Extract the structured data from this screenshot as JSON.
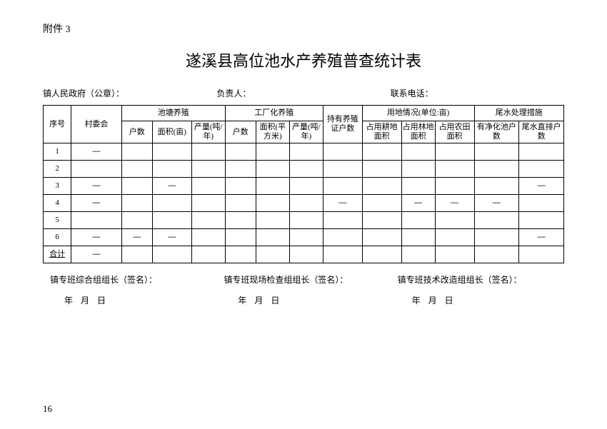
{
  "attachment_label": "附件 3",
  "title": "遂溪县高位池水产养殖普查统计表",
  "meta": {
    "gov": "镇人民政府（公章）：",
    "leader": "负责人：",
    "phone": "联系电话："
  },
  "header": {
    "seq": "序号",
    "village": "村委会",
    "pond_group": "池塘养殖",
    "pond_hu": "户数",
    "pond_area": "面积(亩)",
    "pond_yield": "产量(吨/年)",
    "factory_group": "工厂化养殖",
    "factory_hu": "户数",
    "factory_area": "面积(平方米)",
    "factory_yield": "产量(吨/年)",
    "cert": "持有养殖证户数",
    "land_group": "用地情况(单位:亩)",
    "land_arable": "占用耕地面积",
    "land_forest": "占用林地面积",
    "land_farm": "占用农田面积",
    "tail_group": "尾水处理措施",
    "tail_purify": "有净化池户数",
    "tail_direct": "尾水直排户数"
  },
  "rows": [
    {
      "n": "1",
      "v": "—",
      "a": "",
      "b": "",
      "c": "",
      "d": "",
      "e": "",
      "f": "",
      "g": "",
      "h": "",
      "i": "",
      "j": "",
      "k": "",
      "l": ""
    },
    {
      "n": "2",
      "v": "",
      "a": "",
      "b": "",
      "c": "",
      "d": "",
      "e": "",
      "f": "",
      "g": "",
      "h": "",
      "i": "",
      "j": "",
      "k": "",
      "l": ""
    },
    {
      "n": "3",
      "v": "—",
      "a": "",
      "b": "—",
      "c": "",
      "d": "",
      "e": "",
      "f": "",
      "g": "",
      "h": "",
      "i": "",
      "j": "",
      "k": "",
      "l": "—"
    },
    {
      "n": "4",
      "v": "—",
      "a": "",
      "b": "",
      "c": "",
      "d": "",
      "e": "",
      "f": "",
      "g": "—",
      "h": "",
      "i": "—",
      "j": "—",
      "k": "—",
      "l": ""
    },
    {
      "n": "5",
      "v": "",
      "a": "",
      "b": "",
      "c": "",
      "d": "",
      "e": "",
      "f": "",
      "g": "",
      "h": "",
      "i": "",
      "j": "",
      "k": "",
      "l": ""
    },
    {
      "n": "6",
      "v": "—",
      "a": "—",
      "b": "—",
      "c": "",
      "d": "",
      "e": "",
      "f": "",
      "g": "",
      "h": "",
      "i": "",
      "j": "",
      "k": "",
      "l": "—"
    }
  ],
  "total": {
    "label": "合计",
    "v": "—",
    "a": "",
    "b": "",
    "c": "",
    "d": "",
    "e": "",
    "f": "",
    "g": "",
    "h": "",
    "i": "",
    "j": "",
    "k": "",
    "l": ""
  },
  "signs": {
    "s1": "镇专班综合组组长（签名）：",
    "s2": "镇专班现场检查组组长（签名）：",
    "s3": "镇专班技术改造组组长（签名）："
  },
  "date_text": "年 月 日",
  "page_num": "16"
}
